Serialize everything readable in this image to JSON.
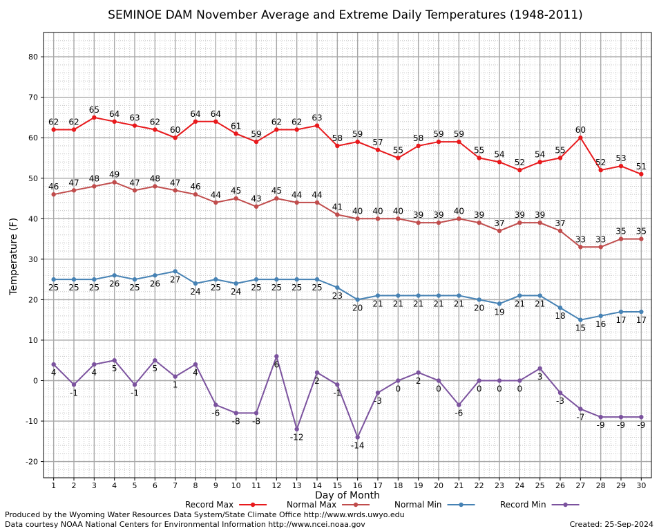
{
  "chart_data": {
    "type": "line",
    "title": "SEMINOE DAM November Average and Extreme Daily Temperatures (1948-2011)",
    "xlabel": "Day of Month",
    "ylabel": "Temperature (F)",
    "xlim": [
      0.5,
      30.5
    ],
    "ylim": [
      -24,
      86
    ],
    "yticks": [
      -20,
      -10,
      0,
      10,
      20,
      30,
      40,
      50,
      60,
      70,
      80
    ],
    "x": [
      1,
      2,
      3,
      4,
      5,
      6,
      7,
      8,
      9,
      10,
      11,
      12,
      13,
      14,
      15,
      16,
      17,
      18,
      19,
      20,
      21,
      22,
      23,
      24,
      25,
      26,
      27,
      28,
      29,
      30
    ],
    "grid": true,
    "legend_position": "bottom",
    "series": [
      {
        "name": "Record Max",
        "color": "#e8191c",
        "label_position": "above",
        "values": [
          62,
          62,
          65,
          64,
          63,
          62,
          60,
          64,
          64,
          61,
          59,
          62,
          62,
          63,
          58,
          59,
          57,
          55,
          58,
          59,
          59,
          55,
          54,
          52,
          54,
          55,
          60,
          52,
          53,
          51
        ]
      },
      {
        "name": "Normal Max",
        "color": "#c04c4c",
        "label_position": "above",
        "values": [
          46,
          47,
          48,
          49,
          47,
          48,
          47,
          46,
          44,
          45,
          43,
          45,
          44,
          44,
          41,
          40,
          40,
          40,
          39,
          39,
          40,
          39,
          37,
          39,
          39,
          37,
          33,
          33,
          35,
          35
        ]
      },
      {
        "name": "Normal Min",
        "color": "#4682b4",
        "label_position": "below",
        "values": [
          25,
          25,
          25,
          26,
          25,
          26,
          27,
          24,
          25,
          24,
          25,
          25,
          25,
          25,
          23,
          20,
          21,
          21,
          21,
          21,
          21,
          20,
          19,
          21,
          21,
          18,
          15,
          16,
          17,
          17
        ]
      },
      {
        "name": "Record Min",
        "color": "#7b529e",
        "label_position": "below",
        "values": [
          4,
          -1,
          4,
          5,
          -1,
          5,
          1,
          4,
          -6,
          -8,
          -8,
          6,
          -12,
          2,
          -1,
          -14,
          -3,
          0,
          2,
          0,
          -6,
          0,
          0,
          0,
          3,
          -3,
          -7,
          -9,
          -9,
          -9
        ]
      }
    ]
  },
  "footer": {
    "produced_by": "Produced by the Wyoming Water Resources Data System/State Climate Office http://www.wrds.uwyo.edu",
    "courtesy": "Data courtesy NOAA National Centers for Environmental Information http://www.ncei.noaa.gov",
    "created": "Created: 25-Sep-2024"
  }
}
